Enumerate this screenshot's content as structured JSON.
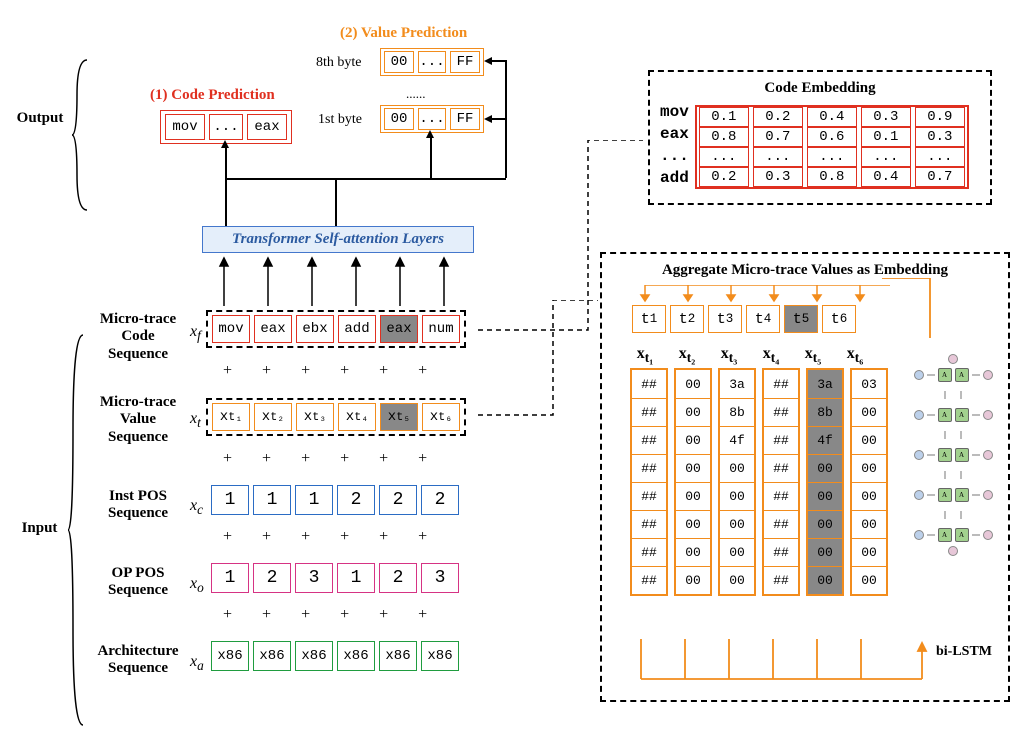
{
  "titles": {
    "codePred": "(1) Code Prediction",
    "valPred": "(2) Value Prediction",
    "byte8": "8th byte",
    "byte1": "1st byte",
    "ellipsisRow": "......",
    "codeEmb": "Code Embedding",
    "aggEmb": "Aggregate Micro-trace Values as Embedding",
    "biLSTM": "bi-LSTM"
  },
  "transformer": "Transformer Self-attention Layers",
  "sideLabels": {
    "output": "Output",
    "input": "Input"
  },
  "inputLabels": [
    "Micro-trace Code Sequence",
    "Micro-trace Value Sequence",
    "Inst POS Sequence",
    "OP POS Sequence",
    "Architecture Sequence"
  ],
  "inputVars": [
    "xf",
    "xt",
    "xc",
    "xo",
    "xa"
  ],
  "codePred": [
    "mov",
    "...",
    "eax"
  ],
  "valuePredRow": [
    "00",
    "...",
    "FF"
  ],
  "xf": [
    "mov",
    "eax",
    "ebx",
    "add",
    "eax",
    "num"
  ],
  "xfShaded": 4,
  "xt": [
    "xt₁",
    "xt₂",
    "xt₃",
    "xt₄",
    "xt₅",
    "xt₆"
  ],
  "xtShaded": 4,
  "xc": [
    "1",
    "1",
    "1",
    "2",
    "2",
    "2"
  ],
  "xo": [
    "1",
    "2",
    "3",
    "1",
    "2",
    "3"
  ],
  "xa": [
    "x86",
    "x86",
    "x86",
    "x86",
    "x86",
    "x86"
  ],
  "codeEmb": {
    "labels": [
      "mov",
      "eax",
      "...",
      "add"
    ],
    "rows": [
      [
        "0.1",
        "0.2",
        "0.4",
        "0.3",
        "0.9"
      ],
      [
        "0.8",
        "0.7",
        "0.6",
        "0.1",
        "0.3"
      ],
      [
        "...",
        "...",
        "...",
        "...",
        "..."
      ],
      [
        "0.2",
        "0.3",
        "0.8",
        "0.4",
        "0.7"
      ]
    ]
  },
  "agg": {
    "tlabels": [
      "t₁",
      "t₂",
      "t₃",
      "t₄",
      "t₅",
      "t₆"
    ],
    "tshaded": 4,
    "xheaders": [
      "xt₁",
      "xt₂",
      "xt₃",
      "xt₄",
      "xt₅",
      "xt₆"
    ],
    "grid": [
      [
        "##",
        "00",
        "3a",
        "##",
        "3a",
        "03"
      ],
      [
        "##",
        "00",
        "8b",
        "##",
        "8b",
        "00"
      ],
      [
        "##",
        "00",
        "4f",
        "##",
        "4f",
        "00"
      ],
      [
        "##",
        "00",
        "00",
        "##",
        "00",
        "00"
      ],
      [
        "##",
        "00",
        "00",
        "##",
        "00",
        "00"
      ],
      [
        "##",
        "00",
        "00",
        "##",
        "00",
        "00"
      ],
      [
        "##",
        "00",
        "00",
        "##",
        "00",
        "00"
      ],
      [
        "##",
        "00",
        "00",
        "##",
        "00",
        "00"
      ]
    ],
    "shadedCol": 4
  },
  "colors": {
    "red": "#e03020",
    "orange": "#f28c1c",
    "blue": "#2b6cc4",
    "magenta": "#d63384",
    "green": "#1f9c3f"
  }
}
